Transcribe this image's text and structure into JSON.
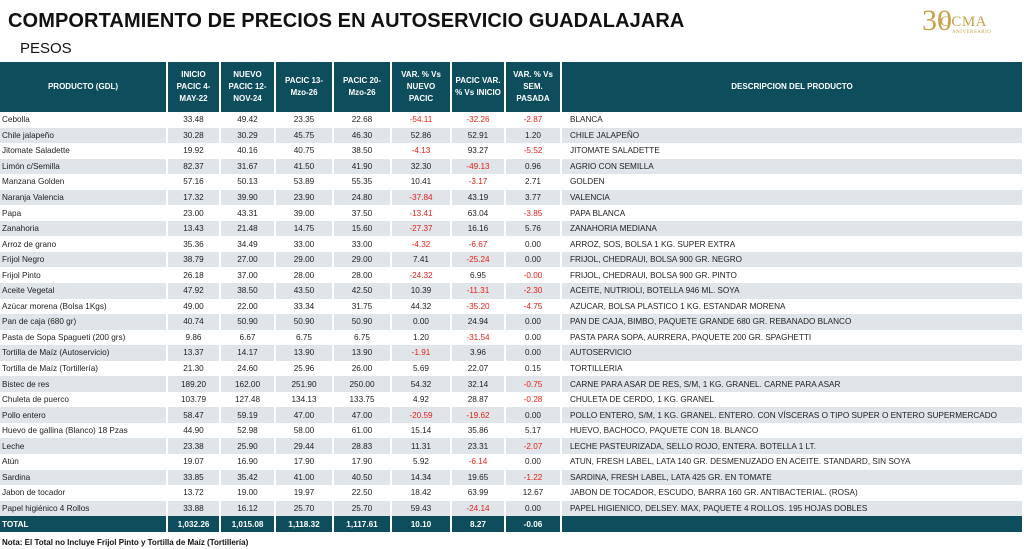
{
  "title": "COMPORTAMIENTO DE PRECIOS EN AUTOSERVICIO GUADALAJARA",
  "subtitle": "PESOS",
  "logo": {
    "number": "30",
    "name": "GCMA",
    "tagline": "ANIVERSARIO"
  },
  "colors": {
    "header": "#0d4d5c",
    "negative": "#e8211c",
    "stripe": "#dfe5e8"
  },
  "columns": [
    "PRODUCTO (GDL)",
    "INICIO PACIC 4-MAY-22",
    "NUEVO PACIC 12-NOV-24",
    "PACIC 13-Mzo-26",
    "PACIC 20-Mzo-26",
    "VAR. % Vs NUEVO PACIC",
    "PACIC VAR. % Vs INICIO",
    "VAR. % Vs SEM. PASADA",
    "DESCRIPCION DEL PRODUCTO"
  ],
  "rows": [
    [
      "Cebolla",
      "33.48",
      "49.42",
      "23.35",
      "22.68",
      "-54.11",
      "-32.26",
      "-2.87",
      "BLANCA"
    ],
    [
      "Chile jalapeño",
      "30.28",
      "30.29",
      "45.75",
      "46.30",
      "52.86",
      "52.91",
      "1.20",
      "CHILE JALAPEÑO"
    ],
    [
      "Jitomate Saladette",
      "19.92",
      "40.16",
      "40.75",
      "38.50",
      "-4.13",
      "93.27",
      "-5.52",
      "JITOMATE SALADETTE"
    ],
    [
      "Limón c/Semilla",
      "82.37",
      "31.67",
      "41.50",
      "41.90",
      "32.30",
      "-49.13",
      "0.96",
      "AGRIO CON SEMILLA"
    ],
    [
      "Manzana Golden",
      "57.16",
      "50.13",
      "53.89",
      "55.35",
      "10.41",
      "-3.17",
      "2.71",
      "GOLDEN"
    ],
    [
      "Naranja Valencia",
      "17.32",
      "39.90",
      "23.90",
      "24.80",
      "-37.84",
      "43.19",
      "3.77",
      "VALENCIA"
    ],
    [
      "Papa",
      "23.00",
      "43.31",
      "39.00",
      "37.50",
      "-13.41",
      "63.04",
      "-3.85",
      "PAPA BLANCA"
    ],
    [
      "Zanahoria",
      "13.43",
      "21.48",
      "14.75",
      "15.60",
      "-27.37",
      "16.16",
      "5.76",
      "ZANAHORIA MEDIANA"
    ],
    [
      "Arroz de grano",
      "35.36",
      "34.49",
      "33.00",
      "33.00",
      "-4.32",
      "-6.67",
      "0.00",
      "ARROZ, SOS, BOLSA 1 KG. SUPER EXTRA"
    ],
    [
      "Frijol Negro",
      "38.79",
      "27.00",
      "29.00",
      "29.00",
      "7.41",
      "-25.24",
      "0.00",
      "FRIJOL, CHEDRAUI, BOLSA 900 GR. NEGRO"
    ],
    [
      "Frijol Pinto",
      "26.18",
      "37.00",
      "28.00",
      "28.00",
      "-24.32",
      "6.95",
      "-0.00",
      "FRIJOL, CHEDRAUI, BOLSA 900 GR. PINTO"
    ],
    [
      "Aceite Vegetal",
      "47.92",
      "38.50",
      "43.50",
      "42.50",
      "10.39",
      "-11.31",
      "-2.30",
      "ACEITE, NUTRIOLI, BOTELLA 946 ML. SOYA"
    ],
    [
      "Azúcar morena (Bolsa 1Kgs)",
      "49.00",
      "22.00",
      "33.34",
      "31.75",
      "44.32",
      "-35.20",
      "-4.75",
      "AZUCAR, BOLSA PLASTICO 1 KG. ESTANDAR MORENA"
    ],
    [
      "Pan de caja (680 gr)",
      "40.74",
      "50.90",
      "50.90",
      "50.90",
      "0.00",
      "24.94",
      "0.00",
      "PAN DE CAJA, BIMBO, PAQUETE GRANDE 680 GR. REBANADO BLANCO"
    ],
    [
      "Pasta de Sopa Spagueti (200 grs)",
      "9.86",
      "6.67",
      "6.75",
      "6.75",
      "1.20",
      "-31.54",
      "0.00",
      "PASTA PARA SOPA, AURRERA, PAQUETE 200 GR. SPAGHETTI"
    ],
    [
      "Tortilla de Maíz (Autoservicio)",
      "13.37",
      "14.17",
      "13.90",
      "13.90",
      "-1.91",
      "3.96",
      "0.00",
      "AUTOSERVICIO"
    ],
    [
      "Tortilla de Maíz (Tortillería)",
      "21.30",
      "24.60",
      "25.96",
      "26.00",
      "5.69",
      "22.07",
      "0.15",
      "TORTILLERIA"
    ],
    [
      "Bistec de res",
      "189.20",
      "162.00",
      "251.90",
      "250.00",
      "54.32",
      "32.14",
      "-0.75",
      "CARNE PARA ASAR DE RES, S/M, 1 KG. GRANEL. CARNE PARA ASAR"
    ],
    [
      "Chuleta de puerco",
      "103.79",
      "127.48",
      "134.13",
      "133.75",
      "4.92",
      "28.87",
      "-0.28",
      "CHULETA DE CERDO, 1 KG. GRANEL"
    ],
    [
      "Pollo entero",
      "58.47",
      "59.19",
      "47.00",
      "47.00",
      "-20.59",
      "-19.62",
      "0.00",
      "POLLO ENTERO, S/M, 1 KG. GRANEL. ENTERO. CON VÍSCERAS O TIPO SUPER O ENTERO SUPERMERCADO"
    ],
    [
      "Huevo de gallina (Blanco) 18 Pzas",
      "44.90",
      "52.98",
      "58.00",
      "61.00",
      "15.14",
      "35.86",
      "5.17",
      "HUEVO, BACHOCO, PAQUETE CON 18. BLANCO"
    ],
    [
      "Leche",
      "23.38",
      "25.90",
      "29.44",
      "28.83",
      "11.31",
      "23.31",
      "-2.07",
      "LECHE PASTEURIZADA, SELLO ROJO, ENTERA. BOTELLA 1 LT."
    ],
    [
      "Atún",
      "19.07",
      "16.90",
      "17.90",
      "17.90",
      "5.92",
      "-6.14",
      "0.00",
      "ATUN, FRESH LABEL, LATA 140 GR. DESMENUZADO EN ACEITE. STANDARD, SIN SOYA"
    ],
    [
      "Sardina",
      "33.85",
      "35.42",
      "41.00",
      "40.50",
      "14.34",
      "19.65",
      "-1.22",
      "SARDINA, FRESH LABEL, LATA 425 GR. EN TOMATE"
    ],
    [
      "Jabon de tocador",
      "13.72",
      "19.00",
      "19.97",
      "22.50",
      "18.42",
      "63.99",
      "12.67",
      "JABON DE TOCADOR, ESCUDO, BARRA 160 GR. ANTIBACTERIAL. (ROSA)"
    ],
    [
      "Papel higiénico 4 Rollos",
      "33.88",
      "16.12",
      "25.70",
      "25.70",
      "59.43",
      "-24.14",
      "0.00",
      "PAPEL HIGIENICO, DELSEY. MAX, PAQUETE 4 ROLLOS. 195 HOJAS DOBLES"
    ]
  ],
  "total": [
    "TOTAL",
    "1,032.26",
    "1,015.08",
    "1,118.32",
    "1,117.61",
    "10.10",
    "8.27",
    "-0.06",
    ""
  ],
  "note": "Nota: El Total no Incluye Frijol Pinto y Tortilla de Maíz (Tortillería)"
}
